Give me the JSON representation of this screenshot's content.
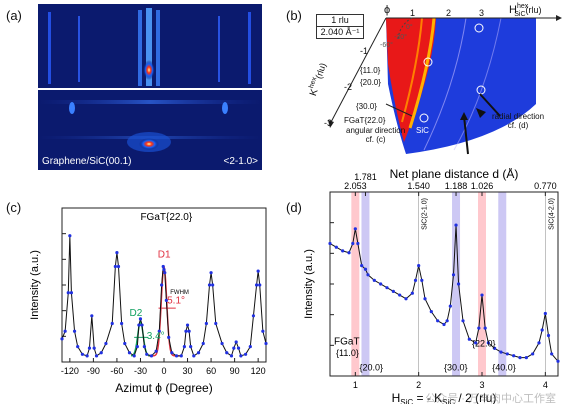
{
  "panels": {
    "a": {
      "label": "(a)",
      "sample": "Graphene/SiC(00.1)",
      "direction": "<2-1.0>"
    },
    "b": {
      "label": "(b)",
      "scale_value": "1 rlu",
      "scale_length": "2.040 Å⁻¹",
      "phi": "ϕ",
      "angles": [
        "0°",
        "-30°",
        "-60°"
      ],
      "h_axis": "H",
      "h_sup": "hex",
      "h_sub": "SiC",
      "h_unit": "(rlu)",
      "k_axis": "K",
      "k_sup": "hex",
      "k_unit": "(rlu)",
      "h_ticks": [
        "1",
        "2",
        "3"
      ],
      "k_ticks": [
        "-1",
        "-2",
        "-3"
      ],
      "reflections": [
        "{11.0}",
        "{20.0}",
        "{30.0}",
        "FGaT{22.0}"
      ],
      "sic_label": "SiC",
      "angular_dir_line1": "angular direction",
      "angular_dir_line2": "cf. (c)",
      "radial_dir_line1": "radial direction",
      "radial_dir_line2": "cf. (d)"
    },
    "c": {
      "label": "(c)",
      "title": "FGaT{22.0}",
      "ylabel": "Intensity (a.u.)",
      "xlabel": "Azimut ϕ (Degree)",
      "peaks": {
        "d1": "D1",
        "d2": "D2",
        "fwhm": "FWHM",
        "fwhm1": "5.1°",
        "fwhm2": "3.4°"
      }
    },
    "d": {
      "label": "(d)",
      "top_axis_label": "Net plane distance d (Å)",
      "ylabel": "Intensity (a.u.)",
      "xlabel_main": "H",
      "xlabel_sub": "SiC",
      "xlabel_mid": " = - K",
      "xlabel_end": " / 2 (rlu)",
      "annotations": {
        "sic1": "SiC(2-1.0)",
        "sic2": "SiC(4-2.0)",
        "fgat": "FGaT",
        "r110": "{11.0}",
        "r200": "{20.0}",
        "r300": "{30.0}",
        "r220": "{22.0}",
        "r400": "{40.0}"
      },
      "watermark": "公众号 · 万丰肉中心工作室"
    }
  },
  "chart_data": [
    {
      "type": "line",
      "panel": "c",
      "title": "FGaT{22.0}",
      "xlabel": "Azimut ϕ (Degree)",
      "ylabel": "Intensity (a.u.)",
      "xlim": [
        -130,
        130
      ],
      "ylim": [
        0,
        1
      ],
      "xticks": [
        -120,
        -90,
        -60,
        -30,
        0,
        30,
        60,
        90,
        120
      ],
      "x": [
        -130,
        -126,
        -122,
        -120,
        -118,
        -114,
        -110,
        -104,
        -98,
        -95,
        -92,
        -89,
        -86,
        -80,
        -74,
        -66,
        -62,
        -60,
        -58,
        -54,
        -50,
        -44,
        -38,
        -34,
        -32,
        -30,
        -28,
        -25,
        -22,
        -16,
        -10,
        -6,
        -3,
        -1,
        0,
        1,
        3,
        6,
        10,
        16,
        22,
        26,
        28,
        30,
        32,
        34,
        38,
        44,
        50,
        54,
        58,
        60,
        62,
        66,
        74,
        80,
        86,
        89,
        92,
        95,
        98,
        104,
        110,
        114,
        118,
        120,
        122,
        126,
        130
      ],
      "y": [
        0.15,
        0.2,
        0.45,
        0.82,
        0.45,
        0.2,
        0.1,
        0.05,
        0.04,
        0.09,
        0.3,
        0.09,
        0.04,
        0.06,
        0.12,
        0.25,
        0.62,
        0.71,
        0.62,
        0.25,
        0.12,
        0.06,
        0.04,
        0.1,
        0.24,
        0.28,
        0.24,
        0.1,
        0.05,
        0.04,
        0.07,
        0.2,
        0.5,
        0.62,
        0.6,
        0.58,
        0.4,
        0.16,
        0.06,
        0.04,
        0.04,
        0.1,
        0.2,
        0.24,
        0.2,
        0.1,
        0.04,
        0.06,
        0.12,
        0.25,
        0.5,
        0.58,
        0.5,
        0.25,
        0.12,
        0.06,
        0.04,
        0.09,
        0.13,
        0.09,
        0.04,
        0.05,
        0.1,
        0.3,
        0.5,
        0.59,
        0.5,
        0.2,
        0.12
      ]
    },
    {
      "type": "line",
      "panel": "d",
      "xlabel": "H_SiC = - K_SiC / 2 (rlu)",
      "ylabel": "Intensity (a.u.)",
      "xlim": [
        0.6,
        4.2
      ],
      "ylim": [
        0,
        1
      ],
      "xticks": [
        1,
        2,
        3,
        4
      ],
      "top_axis_ticks": [
        "2.053",
        "1.781",
        "1.540",
        "1.188",
        "1.026",
        "0.770"
      ],
      "top_axis_positions": [
        1.0,
        1.16,
        2.0,
        2.59,
        3.0,
        4.0
      ],
      "highlight_red": [
        1.0,
        3.0
      ],
      "highlight_purple": [
        1.16,
        2.59,
        3.32
      ],
      "x": [
        0.6,
        0.7,
        0.8,
        0.9,
        0.96,
        1.0,
        1.04,
        1.1,
        1.16,
        1.2,
        1.3,
        1.4,
        1.5,
        1.6,
        1.7,
        1.8,
        1.9,
        1.95,
        2.0,
        2.05,
        2.1,
        2.2,
        2.3,
        2.4,
        2.45,
        2.5,
        2.55,
        2.59,
        2.63,
        2.7,
        2.8,
        2.9,
        2.95,
        3.0,
        3.05,
        3.1,
        3.2,
        3.3,
        3.4,
        3.5,
        3.6,
        3.7,
        3.8,
        3.9,
        3.95,
        4.0,
        4.05,
        4.1,
        4.2
      ],
      "y": [
        0.72,
        0.7,
        0.68,
        0.67,
        0.72,
        0.8,
        0.72,
        0.6,
        0.58,
        0.55,
        0.52,
        0.5,
        0.48,
        0.46,
        0.44,
        0.42,
        0.45,
        0.52,
        0.6,
        0.52,
        0.42,
        0.35,
        0.3,
        0.28,
        0.3,
        0.38,
        0.55,
        0.82,
        0.5,
        0.3,
        0.2,
        0.18,
        0.26,
        0.44,
        0.26,
        0.18,
        0.15,
        0.13,
        0.12,
        0.11,
        0.1,
        0.1,
        0.12,
        0.18,
        0.25,
        0.34,
        0.22,
        0.12,
        0.08
      ]
    }
  ]
}
